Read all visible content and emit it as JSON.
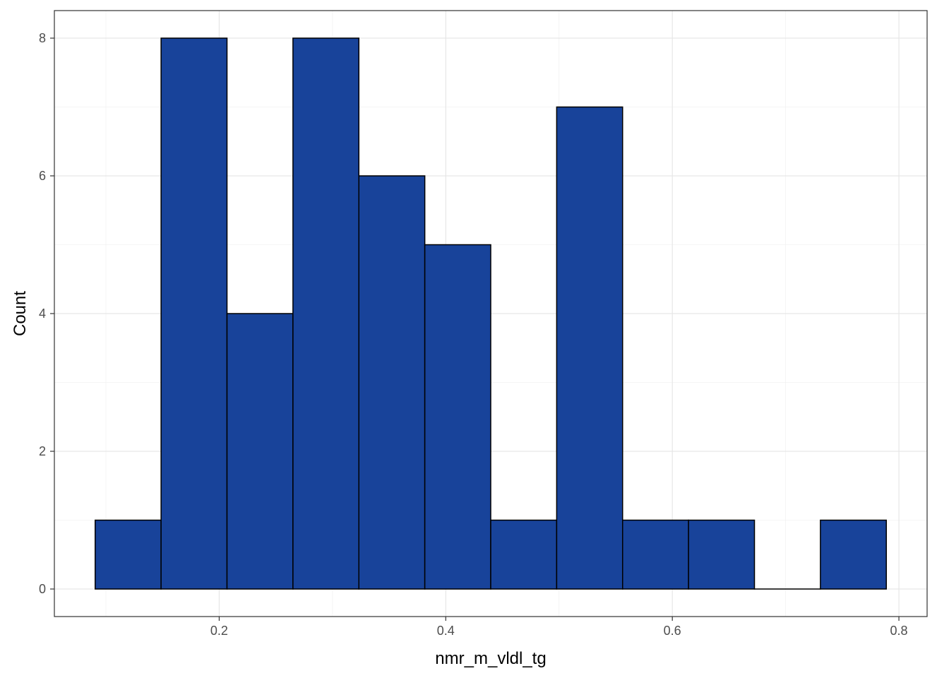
{
  "chart_data": {
    "type": "bar",
    "title": "",
    "xlabel": "nmr_m_vldl_tg",
    "ylabel": "Count",
    "bins": [
      {
        "x0": 0.0905,
        "x1": 0.1487,
        "count": 1
      },
      {
        "x0": 0.1487,
        "x1": 0.2069,
        "count": 8
      },
      {
        "x0": 0.2069,
        "x1": 0.2651,
        "count": 4
      },
      {
        "x0": 0.2651,
        "x1": 0.3233,
        "count": 8
      },
      {
        "x0": 0.3233,
        "x1": 0.3815,
        "count": 6
      },
      {
        "x0": 0.3815,
        "x1": 0.4397,
        "count": 5
      },
      {
        "x0": 0.4397,
        "x1": 0.4979,
        "count": 1
      },
      {
        "x0": 0.4979,
        "x1": 0.5561,
        "count": 7
      },
      {
        "x0": 0.5561,
        "x1": 0.6143,
        "count": 1
      },
      {
        "x0": 0.6143,
        "x1": 0.6725,
        "count": 1
      },
      {
        "x0": 0.6725,
        "x1": 0.7307,
        "count": 0
      },
      {
        "x0": 0.7307,
        "x1": 0.7889,
        "count": 1
      }
    ],
    "xlim": [
      0.0545,
      0.8249
    ],
    "ylim": [
      -0.4,
      8.4
    ],
    "x_ticks": [
      0.2,
      0.4,
      0.6,
      0.8
    ],
    "x_tick_labels": [
      "0.2",
      "0.4",
      "0.6",
      "0.8"
    ],
    "y_ticks": [
      0,
      2,
      4,
      6,
      8
    ],
    "y_tick_labels": [
      "0",
      "2",
      "4",
      "6",
      "8"
    ],
    "grid": true,
    "legend": "none",
    "bar_fill": "#18439A",
    "bar_stroke": "#000000"
  }
}
